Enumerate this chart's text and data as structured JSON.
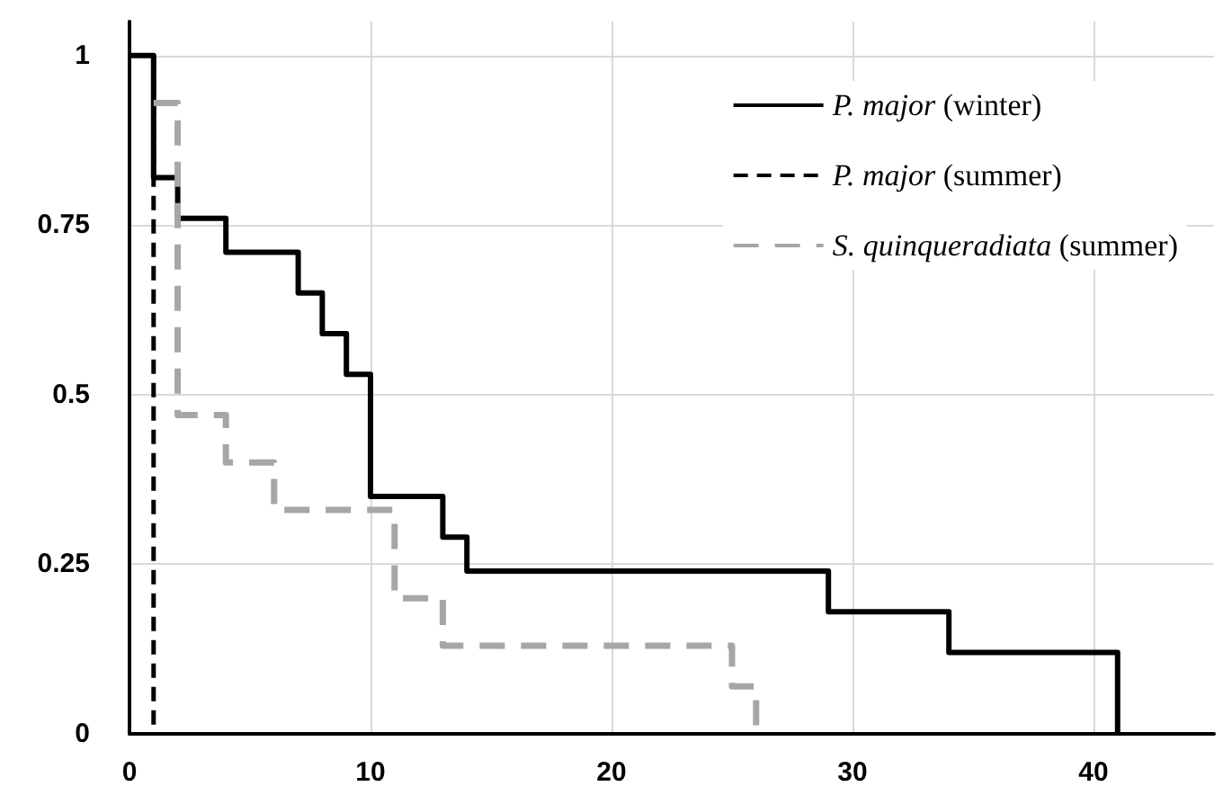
{
  "chart_data": {
    "type": "step",
    "xlim": [
      0,
      45
    ],
    "xticks": [
      0,
      10,
      20,
      30,
      40
    ],
    "ylim": [
      0,
      1.05
    ],
    "yticks": [
      0,
      0.25,
      0.5,
      0.75,
      1
    ],
    "grid": true,
    "legend": "top right",
    "marker": "none",
    "series": [
      {
        "name": "P. major (winter)",
        "color": "#000000",
        "line_style": "solid",
        "x": [
          0,
          1,
          2,
          4,
          7,
          8,
          9,
          10,
          13,
          14,
          29,
          34,
          41
        ],
        "values": [
          1,
          0.82,
          0.76,
          0.71,
          0.65,
          0.59,
          0.53,
          0.35,
          0.29,
          0.24,
          0.18,
          0.12,
          0
        ]
      },
      {
        "name": "P. major (summer)",
        "color": "#000000",
        "line_style": "dashed",
        "x": [
          1,
          1
        ],
        "values": [
          1,
          0
        ]
      },
      {
        "name": "S. quinqueradiata (summer)",
        "color": "#a6a6a6",
        "line_style": "dashed",
        "x": [
          1,
          2,
          4,
          6,
          11,
          13,
          25,
          26
        ],
        "values": [
          0.93,
          0.47,
          0.4,
          0.33,
          0.2,
          0.13,
          0.07,
          0
        ]
      }
    ]
  }
}
